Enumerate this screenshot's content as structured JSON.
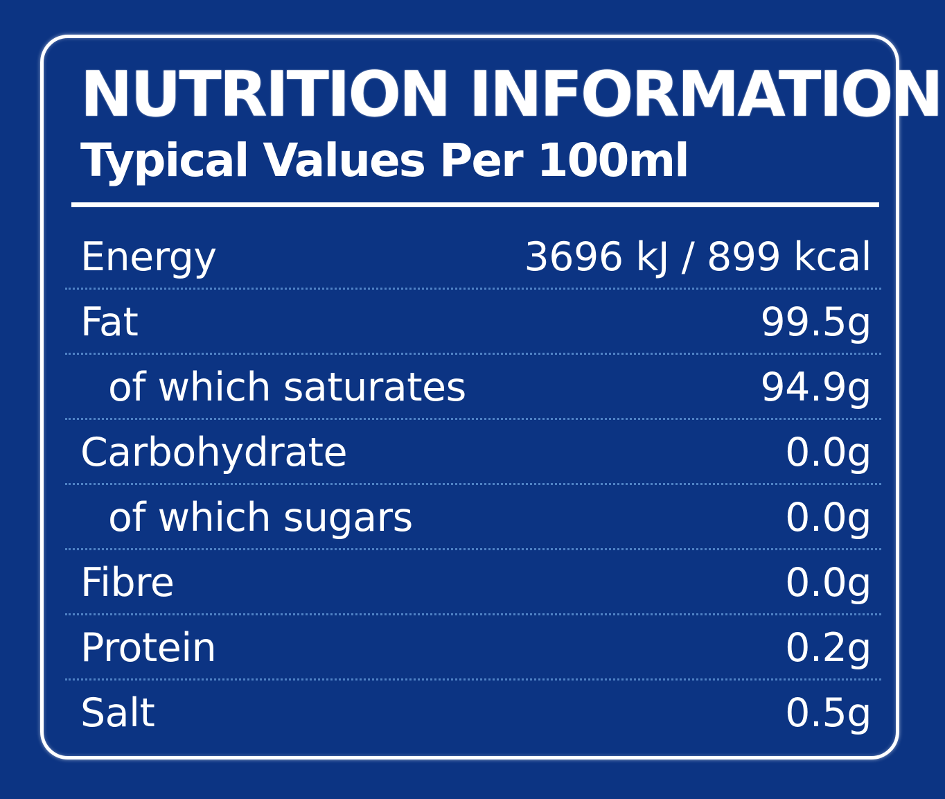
{
  "header": {
    "title": "NUTRITION INFORMATION",
    "subtitle": "Typical Values Per 100ml"
  },
  "nutrients": {
    "energy": {
      "label": "Energy",
      "value": "3696 kJ / 899 kcal"
    },
    "fat": {
      "label": "Fat",
      "value": "99.5g"
    },
    "saturates": {
      "label": "of which saturates",
      "value": "94.9g"
    },
    "carbohydrate": {
      "label": "Carbohydrate",
      "value": "0.0g"
    },
    "sugars": {
      "label": "of which sugars",
      "value": "0.0g"
    },
    "fibre": {
      "label": "Fibre",
      "value": "0.0g"
    },
    "protein": {
      "label": "Protein",
      "value": "0.2g"
    },
    "salt": {
      "label": "Salt",
      "value": "0.5g"
    }
  },
  "colors": {
    "background": "#0c3483",
    "text": "#ffffff",
    "row_divider": "#4f82c5"
  }
}
